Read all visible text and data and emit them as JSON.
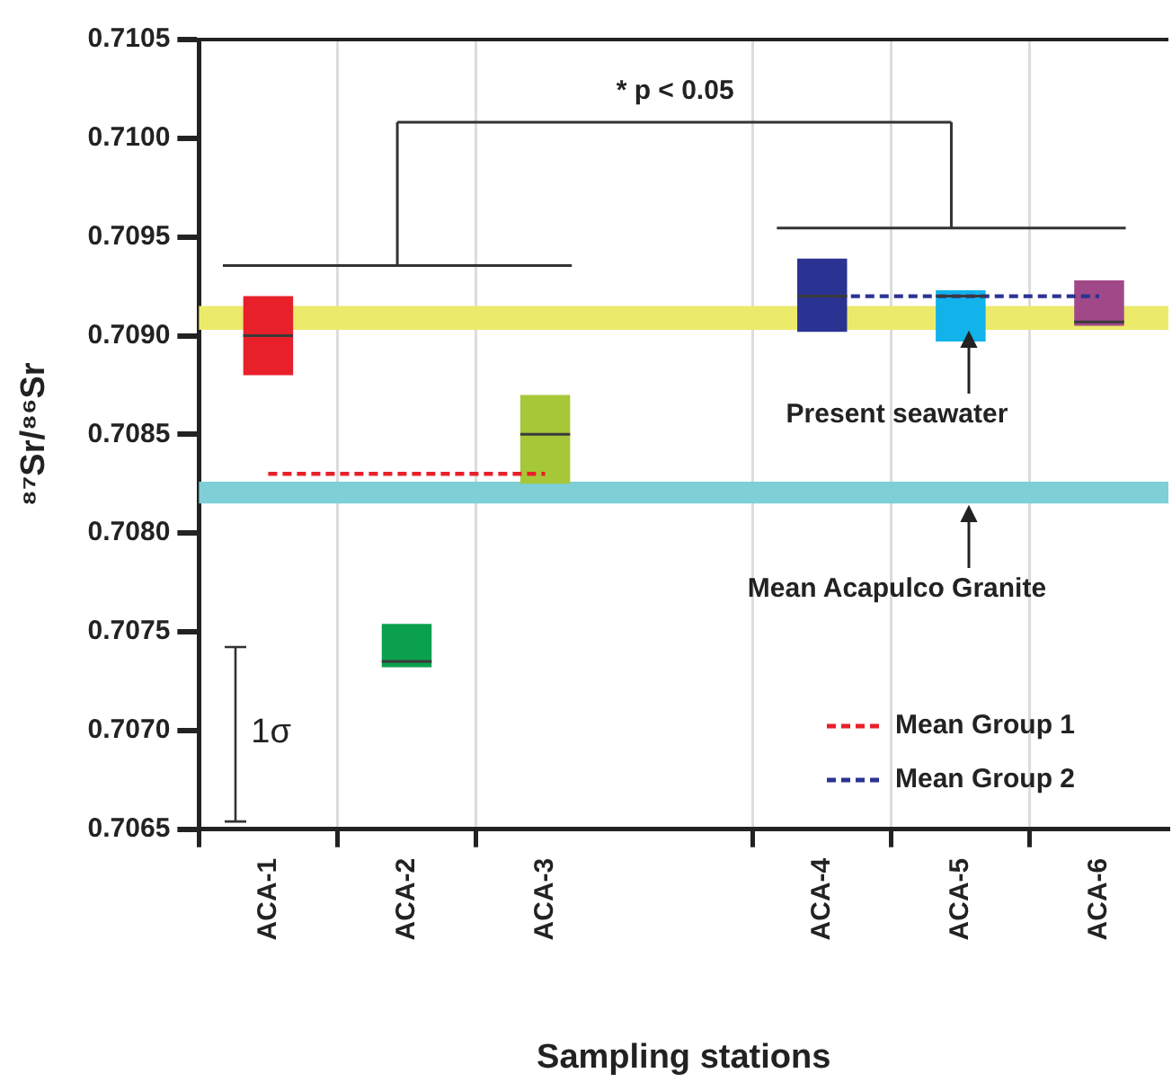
{
  "chart_data": {
    "type": "box",
    "xlabel": "Sampling stations",
    "ylabel": "⁸⁷Sr/⁸⁶Sr",
    "categories": [
      "ACA-1",
      "ACA-2",
      "ACA-3",
      null,
      "ACA-4",
      "ACA-5",
      "ACA-6"
    ],
    "colors": [
      "#e8202a",
      "#0aa04e",
      "#a6c838",
      null,
      "#2b3392",
      "#12b2ea",
      "#a04888"
    ],
    "boxes": [
      {
        "low": 0.7088,
        "q1": 0.7088,
        "median": 0.709,
        "q3": 0.7092,
        "high": 0.7092
      },
      {
        "low": 0.70732,
        "q1": 0.70732,
        "median": 0.70735,
        "q3": 0.70754,
        "high": 0.70754
      },
      {
        "low": 0.70825,
        "q1": 0.70825,
        "median": 0.7085,
        "q3": 0.7087,
        "high": 0.7087
      },
      null,
      {
        "low": 0.70902,
        "q1": 0.70902,
        "median": 0.7092,
        "q3": 0.70939,
        "high": 0.70939
      },
      {
        "low": 0.70897,
        "q1": 0.70897,
        "median": 0.7092,
        "q3": 0.70923,
        "high": 0.70923
      },
      {
        "low": 0.70905,
        "q1": 0.70905,
        "median": 0.70907,
        "q3": 0.70928,
        "high": 0.70928
      }
    ],
    "series": [
      {
        "type": "line",
        "name": "Mean Group 1",
        "color": "#e8202a",
        "values": [
          0.7083,
          0.7083,
          0.7083,
          null,
          null,
          null,
          null
        ]
      },
      {
        "type": "line",
        "name": "Mean Group 2",
        "color": "#2b3392",
        "values": [
          null,
          null,
          null,
          null,
          0.7092,
          0.7092,
          0.7092
        ]
      }
    ],
    "ylim": [
      0.7065,
      0.7105
    ],
    "yticks": [
      0.7065,
      {
        "value": 0.707,
        "label": "0.7070"
      },
      0.7075,
      {
        "value": 0.708,
        "label": "0.7080"
      },
      0.7085,
      {
        "value": 0.709,
        "label": "0.7090"
      },
      0.7095,
      {
        "value": 0.71,
        "label": "0.7100"
      },
      0.7105
    ],
    "bands": [
      {
        "axis": "y",
        "from": 0.70903,
        "to": 0.70915,
        "label": "Present seawater",
        "color": "#ecea6a"
      },
      {
        "axis": "y",
        "from": 0.70815,
        "to": 0.70826,
        "label": "Mean Acapulco Granite",
        "color": "#7ecfd6"
      }
    ],
    "annotations": [
      "* p < 0.05",
      "1σ"
    ],
    "grid": "x",
    "legend": "bottom right",
    "line_style": "dashed",
    "marker": "none"
  }
}
